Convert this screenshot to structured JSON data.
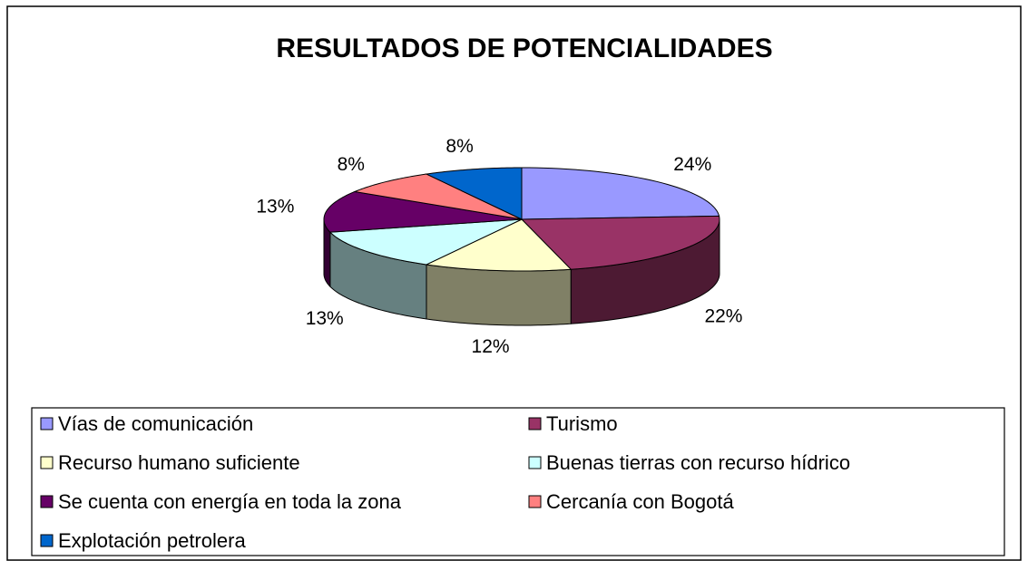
{
  "chart_data": {
    "type": "pie3d",
    "title": "RESULTADOS DE POTENCIALIDADES",
    "categories": [
      "Vías de comunicación",
      "Turismo",
      "Recurso humano suficiente",
      "Buenas tierras con recurso hídrico",
      "Se cuenta con energía en toda la zona",
      "Cercanía con Bogotá",
      "Explotación petrolera"
    ],
    "values": [
      24,
      22,
      12,
      13,
      13,
      8,
      8
    ],
    "value_labels": [
      "24%",
      "22%",
      "12%",
      "13%",
      "13%",
      "8%",
      "8%"
    ],
    "colors": [
      "#9999ff",
      "#993366",
      "#ffffcc",
      "#ccffff",
      "#660066",
      "#ff8080",
      "#0066cc"
    ],
    "legend": "bottom"
  }
}
